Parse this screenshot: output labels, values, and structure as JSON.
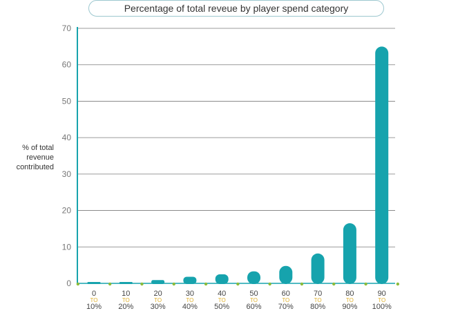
{
  "chart_data": {
    "type": "bar",
    "title": "Percentage of total reveue by player spend category",
    "ylabel_lines": [
      "% of total",
      "revenue",
      "contributed"
    ],
    "xlabel": "",
    "ylim": [
      0,
      70
    ],
    "yticks": [
      0,
      10,
      20,
      30,
      40,
      50,
      60,
      70
    ],
    "grid": true,
    "categories": [
      {
        "from": "0",
        "word": "TO",
        "to": "10%"
      },
      {
        "from": "10",
        "word": "TO",
        "to": "20%"
      },
      {
        "from": "20",
        "word": "TO",
        "to": "30%"
      },
      {
        "from": "30",
        "word": "TO",
        "to": "40%"
      },
      {
        "from": "40",
        "word": "TO",
        "to": "50%"
      },
      {
        "from": "50",
        "word": "TO",
        "to": "60%"
      },
      {
        "from": "60",
        "word": "TO",
        "to": "70%"
      },
      {
        "from": "70",
        "word": "TO",
        "to": "80%"
      },
      {
        "from": "80",
        "word": "TO",
        "to": "90%"
      },
      {
        "from": "90",
        "word": "TO",
        "to": "100%"
      }
    ],
    "values": [
      0.1,
      0.3,
      0.9,
      1.8,
      2.5,
      3.3,
      4.8,
      8.2,
      16.5,
      65.0
    ],
    "colors": {
      "bar": "#16a3ad",
      "axis": "#16a3ad",
      "grid": "#7a7a7a",
      "tick_text": "#777777",
      "cat_text": "#444444",
      "to_text": "#e0b02c",
      "marker": "#8dbb3a"
    }
  }
}
